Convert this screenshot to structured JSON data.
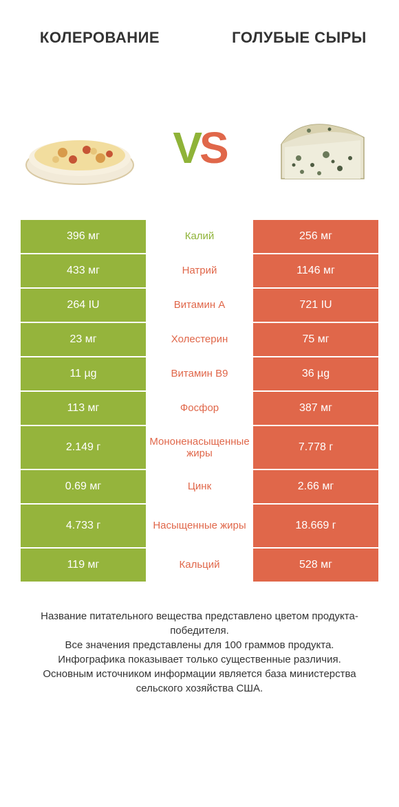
{
  "header": {
    "left_title": "КОЛЕРОВАНИЕ",
    "right_title": "ГОЛУБЫЕ СЫРЫ"
  },
  "vs": {
    "v": "V",
    "s": "S"
  },
  "colors": {
    "green": "#95b43c",
    "orange": "#e0674a",
    "green_text": "#8fb338",
    "orange_text": "#e0674a",
    "bg": "#ffffff"
  },
  "rows": [
    {
      "left": "396 мг",
      "label": "Калий",
      "right": "256 мг",
      "winner": "left",
      "tall": false
    },
    {
      "left": "433 мг",
      "label": "Натрий",
      "right": "1146 мг",
      "winner": "right",
      "tall": false
    },
    {
      "left": "264 IU",
      "label": "Витамин A",
      "right": "721 IU",
      "winner": "right",
      "tall": false
    },
    {
      "left": "23 мг",
      "label": "Холестерин",
      "right": "75 мг",
      "winner": "right",
      "tall": false
    },
    {
      "left": "11 µg",
      "label": "Витамин B9",
      "right": "36 µg",
      "winner": "right",
      "tall": false
    },
    {
      "left": "113 мг",
      "label": "Фосфор",
      "right": "387 мг",
      "winner": "right",
      "tall": false
    },
    {
      "left": "2.149 г",
      "label": "Мононенасыщенные жиры",
      "right": "7.778 г",
      "winner": "right",
      "tall": true
    },
    {
      "left": "0.69 мг",
      "label": "Цинк",
      "right": "2.66 мг",
      "winner": "right",
      "tall": false
    },
    {
      "left": "4.733 г",
      "label": "Насыщенные жиры",
      "right": "18.669 г",
      "winner": "right",
      "tall": true
    },
    {
      "left": "119 мг",
      "label": "Кальций",
      "right": "528 мг",
      "winner": "right",
      "tall": false
    }
  ],
  "footer": {
    "line1": "Название питательного вещества представлено цветом продукта-победителя.",
    "line2": "Все значения представлены для 100 граммов продукта.",
    "line3": "Инфографика показывает только существенные различия.",
    "line4": "Основным источником информации является база министерства сельского хозяйства США."
  }
}
